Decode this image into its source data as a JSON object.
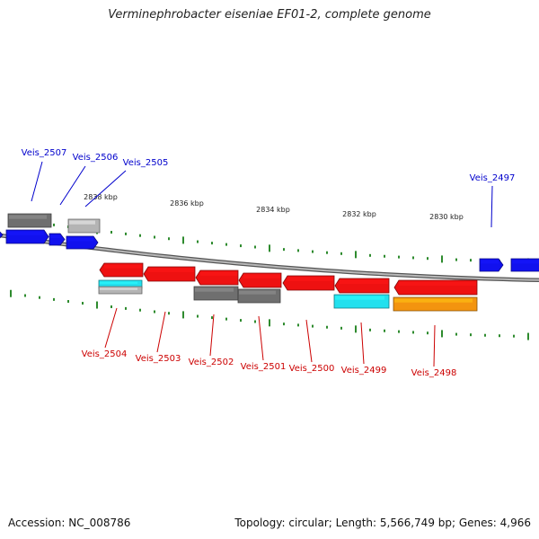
{
  "title": "Verminephrobacter eiseniae EF01-2, complete genome",
  "footer": {
    "accession": "Accession: NC_008786",
    "summary": "Topology: circular; Length: 5,566,749 bp; Genes: 4,966"
  },
  "colors": {
    "backbone": "#8a8a8a",
    "tick": "#2e8b2e",
    "forward_label": "#0000cc",
    "reverse_label": "#cc0000",
    "red": "#ee1111",
    "blue": "#1111ee",
    "gray": "#6f6f6f",
    "lightgray": "#b4b4b4",
    "cyan": "#22e0ee",
    "orange": "#f3940f"
  },
  "scale_labels": [
    "2838 kbp",
    "2836 kbp",
    "2834 kbp",
    "2832 kbp",
    "2830 kbp"
  ],
  "labels": {
    "forward": [
      "Veis_2507",
      "Veis_2506",
      "Veis_2505",
      "Veis_2497"
    ],
    "reverse": [
      "Veis_2504",
      "Veis_2503",
      "Veis_2502",
      "Veis_2501",
      "Veis_2500",
      "Veis_2499",
      "Veis_2498"
    ]
  },
  "features": [
    {
      "kind": "forward-gene",
      "color": "blue"
    },
    {
      "kind": "forward-gene",
      "color": "blue"
    },
    {
      "kind": "forward-gene",
      "color": "blue"
    },
    {
      "kind": "forward-gene",
      "color": "blue"
    },
    {
      "kind": "forward-gene",
      "color": "blue"
    },
    {
      "kind": "forward-gene",
      "color": "blue"
    },
    {
      "kind": "forward-feature",
      "color": "gray"
    },
    {
      "kind": "forward-feature",
      "color": "lightgray"
    },
    {
      "kind": "reverse-gene",
      "color": "red"
    },
    {
      "kind": "reverse-gene",
      "color": "red"
    },
    {
      "kind": "reverse-gene",
      "color": "red"
    },
    {
      "kind": "reverse-gene",
      "color": "red"
    },
    {
      "kind": "reverse-gene",
      "color": "red"
    },
    {
      "kind": "reverse-gene",
      "color": "red"
    },
    {
      "kind": "reverse-gene",
      "color": "red"
    },
    {
      "kind": "reverse-feature",
      "color": "cyan"
    },
    {
      "kind": "reverse-feature",
      "color": "lightgray"
    },
    {
      "kind": "reverse-feature",
      "color": "gray"
    },
    {
      "kind": "reverse-feature",
      "color": "gray"
    },
    {
      "kind": "reverse-feature",
      "color": "cyan"
    },
    {
      "kind": "reverse-feature",
      "color": "orange"
    }
  ]
}
